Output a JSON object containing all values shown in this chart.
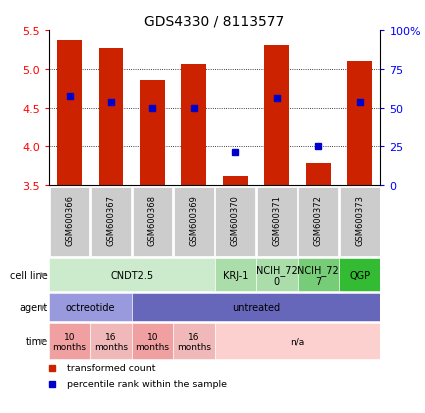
{
  "title": "GDS4330 / 8113577",
  "samples": [
    "GSM600366",
    "GSM600367",
    "GSM600368",
    "GSM600369",
    "GSM600370",
    "GSM600371",
    "GSM600372",
    "GSM600373"
  ],
  "bar_bottoms": [
    3.5,
    3.5,
    3.5,
    3.5,
    3.5,
    3.5,
    3.5,
    3.5
  ],
  "bar_tops": [
    5.38,
    5.27,
    4.86,
    5.06,
    3.62,
    5.31,
    3.79,
    5.1
  ],
  "percentile_values": [
    4.65,
    4.58,
    4.5,
    4.5,
    3.93,
    4.62,
    4.01,
    4.58
  ],
  "ylim_left": [
    3.5,
    5.5
  ],
  "ylim_right": [
    0,
    100
  ],
  "yticks_left": [
    3.5,
    4.0,
    4.5,
    5.0,
    5.5
  ],
  "yticks_right": [
    0,
    25,
    50,
    75,
    100
  ],
  "ytick_labels_right": [
    "0",
    "25",
    "50",
    "75",
    "100%"
  ],
  "bar_color": "#cc2200",
  "dot_color": "#0000cc",
  "cell_line_row": {
    "label": "cell line",
    "groups": [
      {
        "label": "CNDT2.5",
        "start": 0,
        "end": 3,
        "color": "#cceacc"
      },
      {
        "label": "KRJ-1",
        "start": 4,
        "end": 4,
        "color": "#aaddaa"
      },
      {
        "label": "NCIH_72\n0",
        "start": 5,
        "end": 5,
        "color": "#aaddaa"
      },
      {
        "label": "NCIH_72\n7",
        "start": 6,
        "end": 6,
        "color": "#77cc77"
      },
      {
        "label": "QGP",
        "start": 7,
        "end": 7,
        "color": "#33bb33"
      }
    ]
  },
  "agent_row": {
    "label": "agent",
    "groups": [
      {
        "label": "octreotide",
        "start": 0,
        "end": 1,
        "color": "#9999dd"
      },
      {
        "label": "untreated",
        "start": 2,
        "end": 7,
        "color": "#6666bb"
      }
    ]
  },
  "time_row": {
    "label": "time",
    "groups": [
      {
        "label": "10\nmonths",
        "start": 0,
        "end": 0,
        "color": "#f0a0a0"
      },
      {
        "label": "16\nmonths",
        "start": 1,
        "end": 1,
        "color": "#f0b8b8"
      },
      {
        "label": "10\nmonths",
        "start": 2,
        "end": 2,
        "color": "#f0a0a0"
      },
      {
        "label": "16\nmonths",
        "start": 3,
        "end": 3,
        "color": "#f0b8b8"
      },
      {
        "label": "n/a",
        "start": 4,
        "end": 7,
        "color": "#fdd0d0"
      }
    ]
  },
  "legend_items": [
    {
      "label": "transformed count",
      "color": "#cc2200"
    },
    {
      "label": "percentile rank within the sample",
      "color": "#0000cc"
    }
  ],
  "grid_yticks": [
    4.0,
    4.5,
    5.0
  ],
  "sample_box_color": "#cccccc",
  "n_samples": 8
}
